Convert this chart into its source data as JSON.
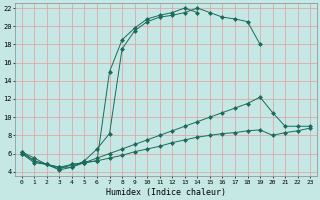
{
  "xlabel": "Humidex (Indice chaleur)",
  "xlim": [
    -0.5,
    23.5
  ],
  "ylim": [
    3.5,
    22.5
  ],
  "xticks": [
    0,
    1,
    2,
    3,
    4,
    5,
    6,
    7,
    8,
    9,
    10,
    11,
    12,
    13,
    14,
    15,
    16,
    17,
    18,
    19,
    20,
    21,
    22,
    23
  ],
  "yticks": [
    4,
    6,
    8,
    10,
    12,
    14,
    16,
    18,
    20,
    22
  ],
  "bg_color": "#c5e8e5",
  "grid_color": "#dda8a8",
  "line_color": "#1a6b5a",
  "line1_x": [
    0,
    1,
    2,
    3,
    4,
    5,
    6,
    7,
    8,
    9,
    10,
    11,
    12,
    13,
    14,
    15,
    16,
    17,
    18,
    19
  ],
  "line1_y": [
    6.2,
    5.2,
    4.8,
    4.5,
    4.5,
    5.2,
    6.5,
    8.2,
    17.5,
    19.5,
    20.5,
    21.0,
    21.2,
    21.5,
    22.0,
    21.5,
    21.0,
    20.8,
    20.5,
    18.0
  ],
  "line2_x": [
    0,
    1,
    2,
    3,
    4,
    5,
    6,
    7,
    8,
    9,
    10,
    11,
    12,
    13,
    14
  ],
  "line2_y": [
    6.0,
    5.0,
    4.8,
    4.2,
    4.5,
    5.0,
    5.2,
    15.0,
    18.5,
    19.8,
    20.8,
    21.2,
    21.5,
    22.0,
    21.5
  ],
  "line3_x": [
    0,
    1,
    2,
    3,
    4,
    5,
    6,
    7,
    8,
    9,
    10,
    11,
    12,
    13,
    14,
    15,
    16,
    17,
    18,
    19,
    20,
    21,
    22,
    23
  ],
  "line3_y": [
    6.2,
    5.5,
    4.8,
    4.5,
    4.8,
    5.0,
    5.5,
    6.0,
    6.5,
    7.0,
    7.5,
    8.0,
    8.5,
    9.0,
    9.5,
    10.0,
    10.5,
    11.0,
    11.5,
    12.2,
    10.5,
    9.0,
    9.0,
    9.0
  ],
  "line4_x": [
    0,
    1,
    2,
    3,
    4,
    5,
    6,
    7,
    8,
    9,
    10,
    11,
    12,
    13,
    14,
    15,
    16,
    17,
    18,
    19,
    20,
    21,
    22,
    23
  ],
  "line4_y": [
    6.0,
    5.2,
    4.8,
    4.3,
    4.8,
    5.0,
    5.2,
    5.5,
    5.8,
    6.2,
    6.5,
    6.8,
    7.2,
    7.5,
    7.8,
    8.0,
    8.2,
    8.3,
    8.5,
    8.6,
    8.0,
    8.3,
    8.5,
    8.8
  ]
}
